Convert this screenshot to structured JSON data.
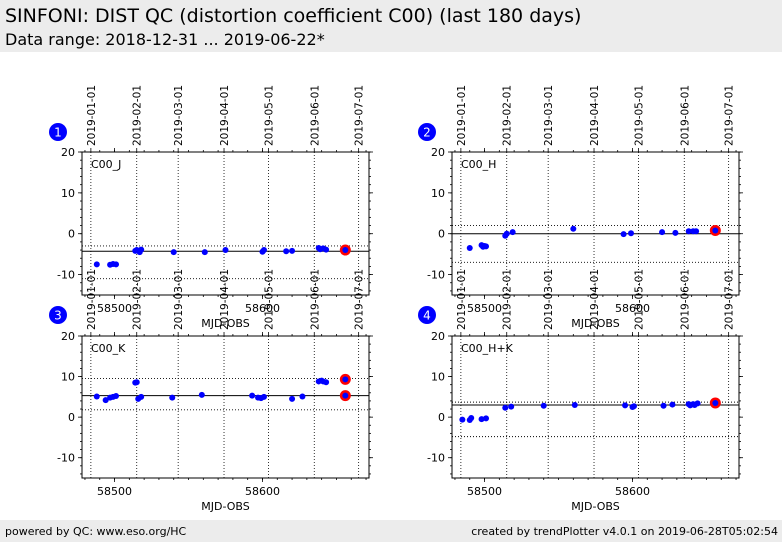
{
  "page": {
    "title": "SINFONI: DIST QC (distortion coefficient C00) (last 180 days)",
    "subtitle": "Data range: 2018-12-31 ... 2019-06-22*",
    "footer_left": "powered by QC: www.eso.org/HC",
    "footer_right": "created by trendPlotter v4.0.1 on 2019-06-28T05:02:54"
  },
  "colors": {
    "marker": "#0000ff",
    "highlight": "#ff0000",
    "badge": "#0000ff",
    "header_bg": "#ececec"
  },
  "chart_data": [
    {
      "type": "scatter",
      "panel": "1",
      "label": "C00_J",
      "xlabel": "MJD-OBS",
      "x_range": [
        58478,
        58672
      ],
      "ylim": [
        -15,
        20
      ],
      "xticks": [
        58500,
        58600
      ],
      "yticks": [
        20,
        10,
        0,
        -10
      ],
      "date_ticks": [
        {
          "label": "2019-01-01",
          "mjd": 58484
        },
        {
          "label": "2019-02-01",
          "mjd": 58515
        },
        {
          "label": "2019-03-01",
          "mjd": 58543
        },
        {
          "label": "2019-04-01",
          "mjd": 58574
        },
        {
          "label": "2019-05-01",
          "mjd": 58604
        },
        {
          "label": "2019-06-01",
          "mjd": 58635
        },
        {
          "label": "2019-07-01",
          "mjd": 58665
        }
      ],
      "mean": -4.3,
      "band": [
        -3.0,
        -11.0
      ],
      "x": [
        58488,
        58497,
        58499,
        58501,
        58514,
        58515,
        58517,
        58518,
        58540,
        58561,
        58575,
        58600,
        58601,
        58616,
        58620,
        58638,
        58639,
        58641,
        58643
      ],
      "y": [
        -7.5,
        -7.6,
        -7.4,
        -7.5,
        -4.2,
        -4.0,
        -4.5,
        -3.9,
        -4.5,
        -4.5,
        -4.0,
        -4.4,
        -4.0,
        -4.3,
        -4.2,
        -3.5,
        -3.8,
        -3.6,
        -3.9
      ],
      "highlight": [
        {
          "x": 58656,
          "y": -4.0
        }
      ]
    },
    {
      "type": "scatter",
      "panel": "2",
      "label": "C00_H",
      "xlabel": "MJD-OBS",
      "x_range": [
        58478,
        58672
      ],
      "ylim": [
        -15,
        20
      ],
      "xticks": [
        58500,
        58600
      ],
      "yticks": [
        20,
        10,
        0,
        -10
      ],
      "date_ticks": [
        {
          "label": "2019-01-01",
          "mjd": 58484
        },
        {
          "label": "2019-02-01",
          "mjd": 58515
        },
        {
          "label": "2019-03-01",
          "mjd": 58543
        },
        {
          "label": "2019-04-01",
          "mjd": 58574
        },
        {
          "label": "2019-05-01",
          "mjd": 58604
        },
        {
          "label": "2019-06-01",
          "mjd": 58635
        },
        {
          "label": "2019-07-01",
          "mjd": 58665
        }
      ],
      "mean": 0.0,
      "band": [
        2.0,
        -7.0
      ],
      "x": [
        58490,
        58498,
        58499,
        58500,
        58501,
        58514,
        58515,
        58519,
        58560,
        58594,
        58599,
        58620,
        58629,
        58638,
        58641,
        58643
      ],
      "y": [
        -3.5,
        -2.8,
        -3.2,
        -3.0,
        -3.1,
        -0.5,
        0.0,
        0.4,
        1.2,
        -0.1,
        0.1,
        0.4,
        0.2,
        0.6,
        0.6,
        0.6
      ],
      "highlight": [
        {
          "x": 58656,
          "y": 0.8
        }
      ]
    },
    {
      "type": "scatter",
      "panel": "3",
      "label": "C00_K",
      "xlabel": "MJD-OBS",
      "x_range": [
        58478,
        58672
      ],
      "ylim": [
        -15,
        20
      ],
      "xticks": [
        58500,
        58600
      ],
      "yticks": [
        20,
        10,
        0,
        -10
      ],
      "date_ticks": [
        {
          "label": "2019-01-01",
          "mjd": 58484
        },
        {
          "label": "2019-02-01",
          "mjd": 58515
        },
        {
          "label": "2019-03-01",
          "mjd": 58543
        },
        {
          "label": "2019-04-01",
          "mjd": 58574
        },
        {
          "label": "2019-05-01",
          "mjd": 58604
        },
        {
          "label": "2019-06-01",
          "mjd": 58635
        },
        {
          "label": "2019-07-01",
          "mjd": 58665
        }
      ],
      "mean": 5.3,
      "band": [
        9.5,
        1.8
      ],
      "x": [
        58488,
        58494,
        58497,
        58499,
        58501,
        58514,
        58515,
        58516,
        58518,
        58539,
        58559,
        58593,
        58597,
        58599,
        58601,
        58620,
        58627,
        58638,
        58640,
        58641,
        58643
      ],
      "y": [
        5.1,
        4.2,
        4.8,
        5.0,
        5.2,
        8.5,
        8.6,
        4.5,
        5.0,
        4.8,
        5.5,
        5.3,
        4.8,
        4.7,
        5.0,
        4.5,
        5.1,
        8.8,
        9.0,
        8.8,
        8.6
      ],
      "highlight": [
        {
          "x": 58656,
          "y": 9.3
        },
        {
          "x": 58656,
          "y": 5.3
        }
      ]
    },
    {
      "type": "scatter",
      "panel": "4",
      "label": "C00_H+K",
      "xlabel": "MJD-OBS",
      "x_range": [
        58478,
        58672
      ],
      "ylim": [
        -15,
        20
      ],
      "xticks": [
        58500,
        58600
      ],
      "yticks": [
        20,
        10,
        0,
        -10
      ],
      "date_ticks": [
        {
          "label": "2019-01-01",
          "mjd": 58484
        },
        {
          "label": "2019-02-01",
          "mjd": 58515
        },
        {
          "label": "2019-03-01",
          "mjd": 58543
        },
        {
          "label": "2019-04-01",
          "mjd": 58574
        },
        {
          "label": "2019-05-01",
          "mjd": 58604
        },
        {
          "label": "2019-06-01",
          "mjd": 58635
        },
        {
          "label": "2019-07-01",
          "mjd": 58665
        }
      ],
      "mean": 3.0,
      "band": [
        3.7,
        -4.8
      ],
      "x": [
        58485,
        58490,
        58491,
        58498,
        58501,
        58514,
        58518,
        58540,
        58561,
        58595,
        58600,
        58601,
        58621,
        58627,
        58638,
        58639,
        58641,
        58642,
        58644
      ],
      "y": [
        -0.6,
        -0.7,
        -0.2,
        -0.5,
        -0.3,
        2.3,
        2.6,
        2.8,
        3.0,
        2.9,
        2.5,
        2.7,
        2.8,
        3.1,
        3.2,
        2.9,
        3.2,
        3.0,
        3.4
      ],
      "highlight": [
        {
          "x": 58656,
          "y": 3.5
        }
      ]
    }
  ]
}
